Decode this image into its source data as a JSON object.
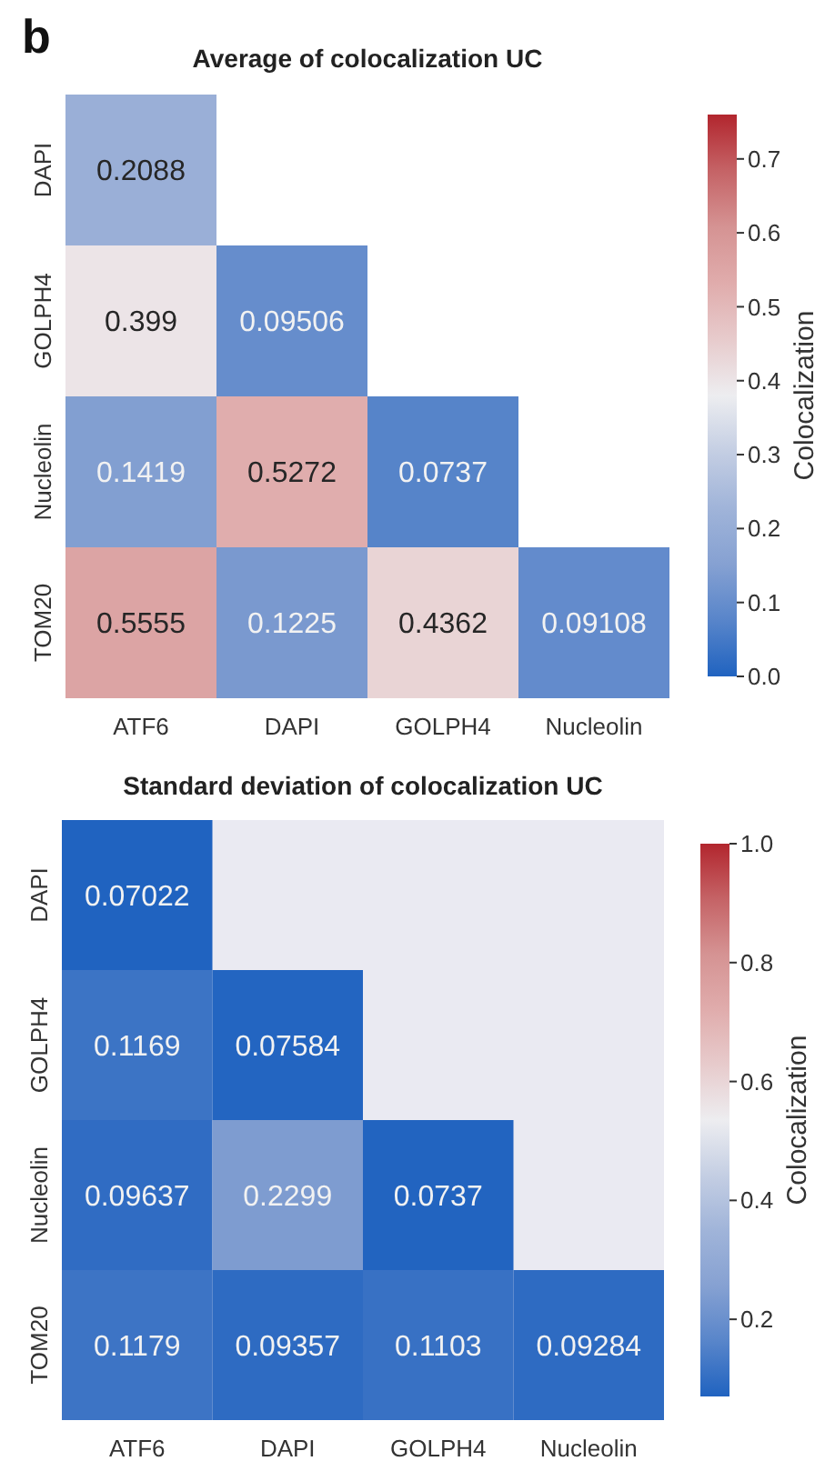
{
  "chart_data": [
    {
      "type": "heatmap",
      "title": "Average of colocalization UC",
      "clabel": "Colocalization",
      "annotations": [
        "b"
      ],
      "categories": [
        "ATF6",
        "DAPI",
        "GOLPH4",
        "Nucleolin"
      ],
      "y_categories": [
        "DAPI",
        "GOLPH4",
        "Nucleolin",
        "TOM20"
      ],
      "cells": [
        [
          0.2088,
          null,
          null,
          null
        ],
        [
          0.399,
          0.09506,
          null,
          null
        ],
        [
          0.1419,
          0.5272,
          0.0737,
          null
        ],
        [
          0.5555,
          0.1225,
          0.4362,
          0.09108
        ]
      ],
      "clim": [
        0,
        0.76
      ],
      "cticks": [
        {
          "value": 0,
          "label": "0.0"
        },
        0.1,
        0.2,
        0.3,
        0.4,
        0.5,
        0.6,
        0.7
      ],
      "data_labels": true
    },
    {
      "type": "heatmap",
      "title": "Standard deviation of colocalization UC",
      "clabel": "Colocalization",
      "categories": [
        "ATF6",
        "DAPI",
        "GOLPH4",
        "Nucleolin"
      ],
      "y_categories": [
        "DAPI",
        "GOLPH4",
        "Nucleolin",
        "TOM20"
      ],
      "cells": [
        [
          0.07022,
          null,
          null,
          null
        ],
        [
          0.1169,
          0.07584,
          null,
          null
        ],
        [
          0.09637,
          0.2299,
          0.0737,
          null
        ],
        [
          0.1179,
          0.09357,
          0.1103,
          0.09284
        ]
      ],
      "clim": [
        0.07022,
        1.0
      ],
      "cticks": [
        0.2,
        0.4,
        0.6,
        0.8,
        {
          "value": 1.0,
          "label": "1.0"
        }
      ],
      "data_labels": true
    }
  ]
}
